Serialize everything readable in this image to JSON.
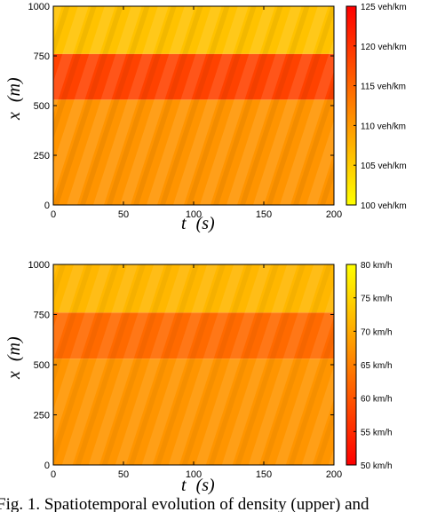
{
  "chart_data": [
    {
      "type": "heatmap",
      "title": "",
      "xlabel": "t (s)",
      "xlabel_var": "t",
      "xlabel_unit": "(s)",
      "ylabel": "x (m)",
      "ylabel_var": "x",
      "ylabel_unit": "(m)",
      "xlim": [
        0,
        200
      ],
      "ylim": [
        0,
        1000
      ],
      "xticks": [
        0,
        50,
        100,
        150,
        200
      ],
      "yticks": [
        0,
        250,
        500,
        750,
        1000
      ],
      "colorbar": {
        "range": [
          100,
          125
        ],
        "ticks": [
          "100 veh/km",
          "105 veh/km",
          "110 veh/km",
          "115 veh/km",
          "120 veh/km",
          "125 veh/km"
        ],
        "tick_values": [
          100,
          105,
          110,
          115,
          120,
          125
        ],
        "colors": [
          "#ffff00",
          "#ff0000"
        ]
      },
      "bands": [
        {
          "x_from": 0,
          "x_to": 530,
          "value": 110.5
        },
        {
          "x_from": 530,
          "x_to": 760,
          "value": 118.5
        },
        {
          "x_from": 760,
          "x_to": 1000,
          "value": 106
        }
      ],
      "grid": false
    },
    {
      "type": "heatmap",
      "title": "",
      "xlabel": "t (s)",
      "xlabel_var": "t",
      "xlabel_unit": "(s)",
      "ylabel": "x (m)",
      "ylabel_var": "x",
      "ylabel_unit": "(m)",
      "xlim": [
        0,
        200
      ],
      "ylim": [
        0,
        1000
      ],
      "xticks": [
        0,
        50,
        100,
        150,
        200
      ],
      "yticks": [
        0,
        250,
        500,
        750,
        1000
      ],
      "colorbar": {
        "range": [
          50,
          80
        ],
        "ticks": [
          "50 km/h",
          "55 km/h",
          "60 km/h",
          "65 km/h",
          "70 km/h",
          "75 km/h",
          "80 km/h"
        ],
        "tick_values": [
          50,
          55,
          60,
          65,
          70,
          75,
          80
        ],
        "colors": [
          "#ff0000",
          "#ffff00"
        ]
      },
      "bands": [
        {
          "x_from": 0,
          "x_to": 530,
          "value": 67.5
        },
        {
          "x_from": 530,
          "x_to": 760,
          "value": 62.5
        },
        {
          "x_from": 760,
          "x_to": 1000,
          "value": 71.5
        }
      ],
      "grid": false
    }
  ],
  "caption": "Fig. 1.   Spatiotemporal evolution of density (upper) and"
}
